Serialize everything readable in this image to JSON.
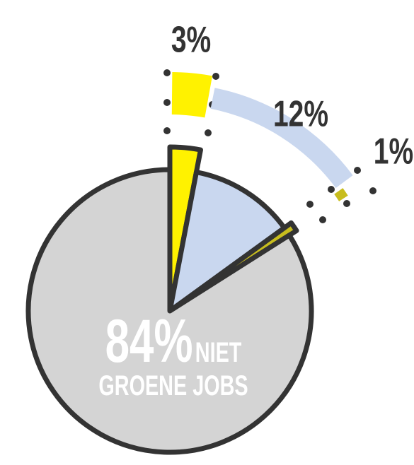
{
  "chart_data": {
    "type": "pie",
    "categories": [
      null,
      null,
      null,
      "NIET GROENE JOBS"
    ],
    "values": [
      3,
      12,
      1,
      84
    ],
    "value_labels": [
      "3%",
      "12%",
      "1%",
      "84%"
    ],
    "colors": [
      "#fff200",
      "#c9d7ef",
      "#c8bd1e",
      "#d4d4d4"
    ]
  }
}
